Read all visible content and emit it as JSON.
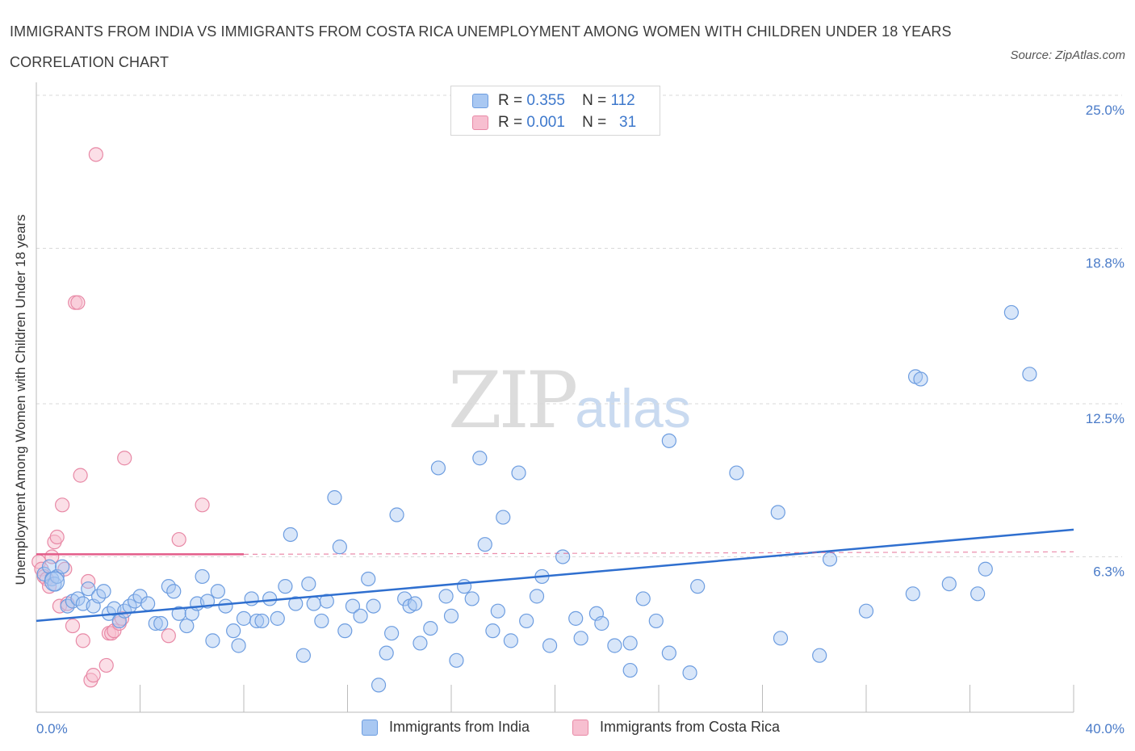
{
  "title": "IMMIGRANTS FROM INDIA VS IMMIGRANTS FROM COSTA RICA UNEMPLOYMENT AMONG WOMEN WITH CHILDREN UNDER 18 YEARS CORRELATION CHART",
  "source": "Source: ZipAtlas.com",
  "watermark": {
    "zip": "ZIP",
    "atlas": "atlas"
  },
  "legend_top": {
    "rows": [
      {
        "r_label": "R =",
        "r_value": "0.355",
        "n_label": "N =",
        "n_value": "112"
      },
      {
        "r_label": "R =",
        "r_value": "0.001",
        "n_label": "N =",
        "n_value": "31"
      }
    ]
  },
  "legend_bottom": {
    "items": [
      "Immigrants from India",
      "Immigrants from Costa Rica"
    ]
  },
  "colors": {
    "india_fill": "#a9c8f2",
    "india_stroke": "#6d9de0",
    "india_line": "#2f6fcf",
    "costa_fill": "#f7bfd0",
    "costa_stroke": "#e889a6",
    "costa_line": "#e35c89",
    "grid": "#d9d9d9",
    "axis": "#bbbbbb"
  },
  "chart_data": {
    "type": "scatter",
    "xlabel": "",
    "ylabel": "Unemployment Among Women with Children Under 18 years",
    "xlim": [
      0,
      40
    ],
    "ylim": [
      0,
      25
    ],
    "x_tick_labels": [
      "0.0%",
      "40.0%"
    ],
    "y_ticks": [
      6.3,
      12.5,
      18.8,
      25.0
    ],
    "y_tick_labels": [
      "6.3%",
      "12.5%",
      "18.8%",
      "25.0%"
    ],
    "grid": true,
    "series": [
      {
        "name": "Immigrants from India",
        "trend": {
          "x": [
            0,
            40
          ],
          "y": [
            3.7,
            7.4
          ]
        },
        "points": [
          [
            0.3,
            5.6
          ],
          [
            0.5,
            5.9
          ],
          [
            0.6,
            5.4
          ],
          [
            0.7,
            5.2
          ],
          [
            0.8,
            5.5
          ],
          [
            1.0,
            5.9
          ],
          [
            1.2,
            4.3
          ],
          [
            1.4,
            4.5
          ],
          [
            1.6,
            4.6
          ],
          [
            1.8,
            4.4
          ],
          [
            2.0,
            5.0
          ],
          [
            2.2,
            4.3
          ],
          [
            2.4,
            4.7
          ],
          [
            2.6,
            4.9
          ],
          [
            2.8,
            4.0
          ],
          [
            3.0,
            4.2
          ],
          [
            3.2,
            3.7
          ],
          [
            3.4,
            4.1
          ],
          [
            3.6,
            4.3
          ],
          [
            3.8,
            4.5
          ],
          [
            4.0,
            4.7
          ],
          [
            4.3,
            4.4
          ],
          [
            4.6,
            3.6
          ],
          [
            4.8,
            3.6
          ],
          [
            5.1,
            5.1
          ],
          [
            5.3,
            4.9
          ],
          [
            5.5,
            4.0
          ],
          [
            5.8,
            3.5
          ],
          [
            6.0,
            4.0
          ],
          [
            6.2,
            4.4
          ],
          [
            6.4,
            5.5
          ],
          [
            6.6,
            4.5
          ],
          [
            6.8,
            2.9
          ],
          [
            7.0,
            4.9
          ],
          [
            7.3,
            4.3
          ],
          [
            7.6,
            3.3
          ],
          [
            7.8,
            2.7
          ],
          [
            8.0,
            3.8
          ],
          [
            8.3,
            4.6
          ],
          [
            8.5,
            3.7
          ],
          [
            8.7,
            3.7
          ],
          [
            9.0,
            4.6
          ],
          [
            9.3,
            3.8
          ],
          [
            9.6,
            5.1
          ],
          [
            9.8,
            7.2
          ],
          [
            10.0,
            4.4
          ],
          [
            10.3,
            2.3
          ],
          [
            10.5,
            5.2
          ],
          [
            10.7,
            4.4
          ],
          [
            11.0,
            3.7
          ],
          [
            11.2,
            4.5
          ],
          [
            11.5,
            8.7
          ],
          [
            11.7,
            6.7
          ],
          [
            11.9,
            3.3
          ],
          [
            12.2,
            4.3
          ],
          [
            12.5,
            3.9
          ],
          [
            12.8,
            5.4
          ],
          [
            13.0,
            4.3
          ],
          [
            13.2,
            1.1
          ],
          [
            13.5,
            2.4
          ],
          [
            13.7,
            3.2
          ],
          [
            13.9,
            8.0
          ],
          [
            14.2,
            4.6
          ],
          [
            14.4,
            4.3
          ],
          [
            14.6,
            4.4
          ],
          [
            14.8,
            2.8
          ],
          [
            15.2,
            3.4
          ],
          [
            15.5,
            9.9
          ],
          [
            15.8,
            4.7
          ],
          [
            16.0,
            3.9
          ],
          [
            16.2,
            2.1
          ],
          [
            16.5,
            5.1
          ],
          [
            16.8,
            4.6
          ],
          [
            17.1,
            10.3
          ],
          [
            17.3,
            6.8
          ],
          [
            17.6,
            3.3
          ],
          [
            17.8,
            4.1
          ],
          [
            18.0,
            7.9
          ],
          [
            18.3,
            2.9
          ],
          [
            18.6,
            9.7
          ],
          [
            18.9,
            3.7
          ],
          [
            19.3,
            4.7
          ],
          [
            19.5,
            5.5
          ],
          [
            19.8,
            2.7
          ],
          [
            20.3,
            6.3
          ],
          [
            20.8,
            3.8
          ],
          [
            21.0,
            3.0
          ],
          [
            21.6,
            4.0
          ],
          [
            21.8,
            3.6
          ],
          [
            22.3,
            2.7
          ],
          [
            22.9,
            1.7
          ],
          [
            22.9,
            2.8
          ],
          [
            23.4,
            4.6
          ],
          [
            23.9,
            3.7
          ],
          [
            24.4,
            11.0
          ],
          [
            24.4,
            2.4
          ],
          [
            25.2,
            1.6
          ],
          [
            25.5,
            5.1
          ],
          [
            27.0,
            9.7
          ],
          [
            28.6,
            8.1
          ],
          [
            28.7,
            3.0
          ],
          [
            30.2,
            2.3
          ],
          [
            30.6,
            6.2
          ],
          [
            32.0,
            4.1
          ],
          [
            33.8,
            4.8
          ],
          [
            33.9,
            13.6
          ],
          [
            34.1,
            13.5
          ],
          [
            35.2,
            5.2
          ],
          [
            36.3,
            4.8
          ],
          [
            36.6,
            5.8
          ],
          [
            37.6,
            16.2
          ],
          [
            38.3,
            13.7
          ]
        ]
      },
      {
        "name": "Immigrants from Costa Rica",
        "trend": {
          "x": [
            0,
            8
          ],
          "y": [
            6.4,
            6.4
          ]
        },
        "trend_extension": {
          "x": [
            8,
            40
          ],
          "y": [
            6.4,
            6.5
          ]
        },
        "points": [
          [
            0.1,
            6.1
          ],
          [
            0.2,
            5.8
          ],
          [
            0.3,
            5.5
          ],
          [
            0.4,
            5.4
          ],
          [
            0.5,
            5.1
          ],
          [
            0.6,
            6.3
          ],
          [
            0.7,
            6.9
          ],
          [
            0.8,
            7.1
          ],
          [
            0.9,
            4.3
          ],
          [
            1.0,
            8.4
          ],
          [
            1.1,
            5.8
          ],
          [
            1.2,
            4.4
          ],
          [
            1.4,
            3.5
          ],
          [
            1.5,
            16.6
          ],
          [
            1.6,
            16.6
          ],
          [
            1.7,
            9.6
          ],
          [
            1.8,
            2.9
          ],
          [
            2.0,
            5.3
          ],
          [
            2.1,
            1.3
          ],
          [
            2.2,
            1.5
          ],
          [
            2.3,
            22.6
          ],
          [
            2.7,
            1.9
          ],
          [
            2.8,
            3.2
          ],
          [
            2.9,
            3.2
          ],
          [
            3.0,
            3.3
          ],
          [
            3.2,
            3.6
          ],
          [
            3.3,
            3.8
          ],
          [
            3.4,
            10.3
          ],
          [
            5.1,
            3.1
          ],
          [
            5.5,
            7.0
          ],
          [
            6.4,
            8.4
          ]
        ]
      }
    ]
  }
}
